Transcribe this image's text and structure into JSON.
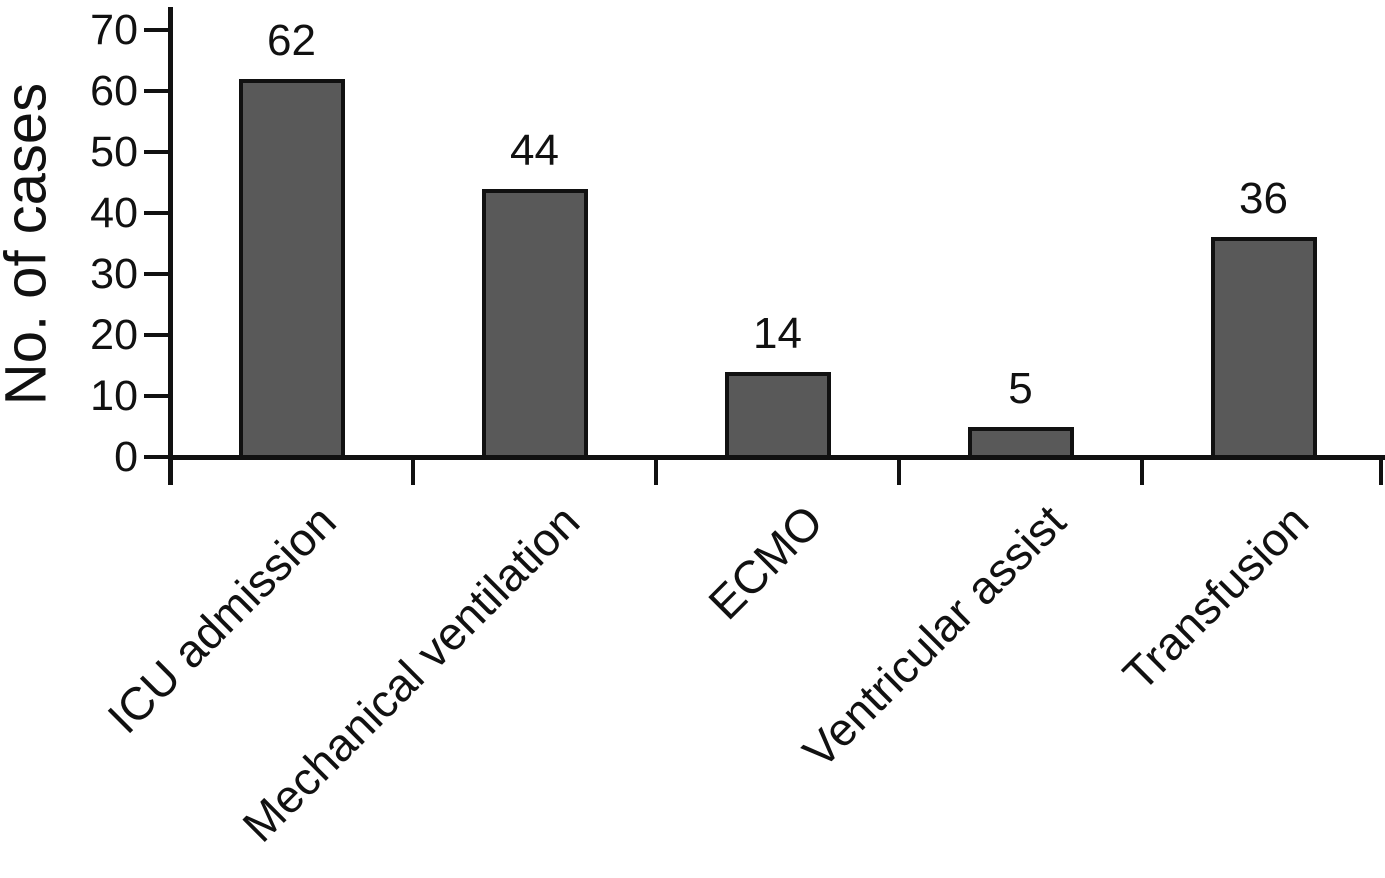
{
  "chart_data": {
    "type": "bar",
    "categories": [
      "ICU admission",
      "Mechanical ventilation",
      "ECMO",
      "Ventricular assist",
      "Transfusion"
    ],
    "values": [
      62,
      44,
      14,
      5,
      36
    ],
    "value_labels": [
      "62",
      "44",
      "14",
      "5",
      "36"
    ],
    "title": "",
    "xlabel": "",
    "ylabel": "No. of cases",
    "ylim": [
      0,
      70
    ],
    "yticks": [
      0,
      10,
      20,
      30,
      40,
      50,
      60,
      70
    ],
    "grid": false,
    "legend": false,
    "bar_color": "#595959",
    "bar_border_color": "#111111",
    "axis_color": "#111111",
    "text_color": "#111111",
    "background": "#ffffff"
  }
}
